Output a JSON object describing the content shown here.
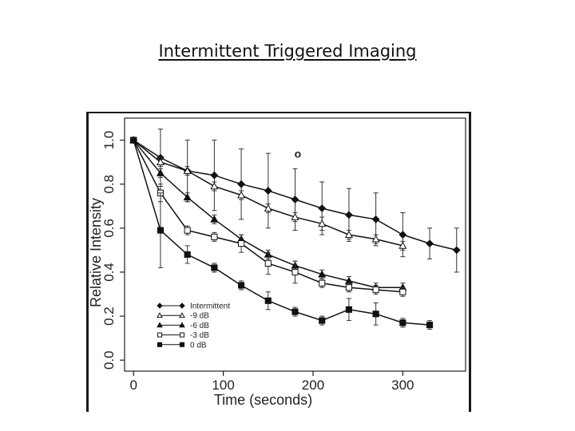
{
  "slide": {
    "title": "Intermittent Triggered Imaging"
  },
  "chart_data": {
    "type": "line",
    "title": "",
    "xlabel": "Time (seconds)",
    "ylabel": "Relative Intensity",
    "xlim": [
      -10,
      370
    ],
    "ylim": [
      -0.05,
      1.1
    ],
    "xticks": [
      0,
      100,
      200,
      300
    ],
    "xtick_labels": [
      "0",
      "100",
      "200",
      "300"
    ],
    "yticks": [
      0.0,
      0.2,
      0.4,
      0.6,
      0.8,
      1.0
    ],
    "ytick_labels": [
      "0.0",
      "0.2",
      "0.4",
      "0.6",
      "0.8",
      "1.0"
    ],
    "grid": false,
    "legend_position": "bottom-left",
    "series": [
      {
        "name": "Intermittent",
        "marker": "diamond-filled",
        "x": [
          0,
          30,
          60,
          90,
          120,
          150,
          180,
          210,
          240,
          270,
          300,
          330,
          360
        ],
        "values": [
          1.0,
          0.92,
          0.86,
          0.84,
          0.8,
          0.77,
          0.73,
          0.69,
          0.66,
          0.64,
          0.57,
          0.53,
          0.5
        ],
        "error": [
          0,
          0.13,
          0.14,
          0.16,
          0.16,
          0.17,
          0.14,
          0.12,
          0.12,
          0.12,
          0.1,
          0.07,
          0.1
        ]
      },
      {
        "name": "-9 dB",
        "marker": "triangle-open",
        "x": [
          0,
          30,
          60,
          90,
          120,
          150,
          180,
          210,
          240,
          270,
          300
        ],
        "values": [
          1.0,
          0.9,
          0.86,
          0.79,
          0.75,
          0.69,
          0.65,
          0.62,
          0.57,
          0.55,
          0.52
        ],
        "error": [
          0,
          0.02,
          0.02,
          0.02,
          0.02,
          0.02,
          0.02,
          0.03,
          0.02,
          0.02,
          0.02
        ]
      },
      {
        "name": "-6 dB",
        "marker": "triangle-filled",
        "x": [
          0,
          30,
          60,
          90,
          120,
          150,
          180,
          210,
          240,
          270,
          300
        ],
        "values": [
          1.0,
          0.85,
          0.74,
          0.64,
          0.55,
          0.48,
          0.43,
          0.39,
          0.36,
          0.33,
          0.33
        ],
        "error": [
          0,
          0.02,
          0.02,
          0.02,
          0.02,
          0.02,
          0.02,
          0.02,
          0.02,
          0.02,
          0.02
        ]
      },
      {
        "name": "-3 dB",
        "marker": "square-open",
        "x": [
          0,
          30,
          60,
          90,
          120,
          150,
          180,
          210,
          240,
          270,
          300
        ],
        "values": [
          1.0,
          0.76,
          0.59,
          0.56,
          0.53,
          0.44,
          0.4,
          0.35,
          0.33,
          0.32,
          0.31
        ],
        "error": [
          0,
          0.04,
          0.02,
          0.02,
          0.04,
          0.05,
          0.05,
          0.02,
          0.02,
          0.02,
          0.02
        ]
      },
      {
        "name": "0 dB",
        "marker": "square-filled",
        "x": [
          0,
          30,
          60,
          90,
          120,
          150,
          180,
          210,
          240,
          270,
          300,
          330
        ],
        "values": [
          1.0,
          0.59,
          0.48,
          0.42,
          0.34,
          0.27,
          0.22,
          0.18,
          0.23,
          0.21,
          0.17,
          0.16
        ],
        "error": [
          0,
          0.17,
          0.04,
          0.02,
          0.02,
          0.04,
          0.02,
          0.02,
          0.05,
          0.05,
          0.02,
          0.02
        ]
      }
    ],
    "annotations": [
      {
        "text": "o",
        "x": 183,
        "y": 0.92
      }
    ]
  }
}
